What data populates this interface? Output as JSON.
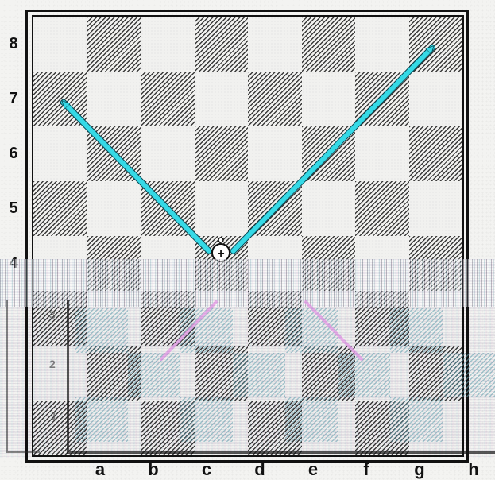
{
  "board": {
    "ranks": [
      "8",
      "7",
      "6",
      "5",
      "4",
      "3",
      "2",
      "1"
    ],
    "files": [
      "a",
      "b",
      "c",
      "d",
      "e",
      "f",
      "g",
      "h"
    ],
    "ghost_ranks": [
      "3",
      "2",
      "1"
    ]
  },
  "piece": {
    "square": "d4",
    "icon": "pawn-plus-icon",
    "symbol": "+"
  },
  "arrows": [
    {
      "from": "d4",
      "to": "a7",
      "color": "#35d9e6"
    },
    {
      "from": "d4",
      "to": "h8",
      "color": "#35d9e6"
    }
  ],
  "colors": {
    "arrow": "#35d9e6",
    "ghost_arrow": "#e8a4e8",
    "dark_square_hatch": "#3a3a3a",
    "light_square": "#f1f1ef"
  }
}
